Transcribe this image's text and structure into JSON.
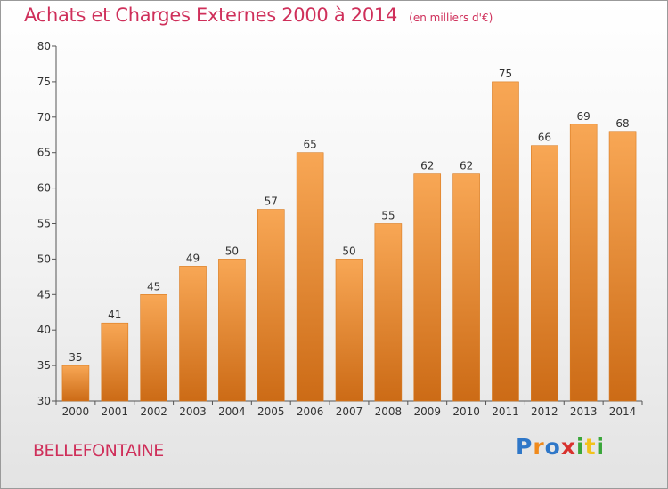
{
  "header": {
    "title": "Achats et Charges Externes 2000 à 2014",
    "unit": "(en milliers d'€)"
  },
  "footer": {
    "commune": "BELLEFONTAINE",
    "logo": {
      "letters": [
        "P",
        "r",
        "o",
        "x",
        "i",
        "t",
        "i"
      ],
      "colors": [
        "#2f77c8",
        "#f08a1c",
        "#2f77c8",
        "#d8312d",
        "#3aa63a",
        "#f2c21b",
        "#3aa63a"
      ]
    }
  },
  "colors": {
    "bar_light": "#f8a755",
    "bar_dark": "#cc6b16",
    "bar_edge": "#d87a20",
    "title": "#cf2f5a"
  },
  "chart_data": {
    "type": "bar",
    "categories": [
      "2000",
      "2001",
      "2002",
      "2003",
      "2004",
      "2005",
      "2006",
      "2007",
      "2008",
      "2009",
      "2010",
      "2011",
      "2012",
      "2013",
      "2014"
    ],
    "values": [
      35,
      41,
      45,
      49,
      50,
      57,
      65,
      50,
      55,
      62,
      62,
      75,
      66,
      69,
      68
    ],
    "title": "Achats et Charges Externes 2000 à 2014",
    "xlabel": "",
    "ylabel": "",
    "ylim": [
      30,
      80
    ],
    "yticks": [
      30,
      35,
      40,
      45,
      50,
      55,
      60,
      65,
      70,
      75,
      80
    ],
    "grid": false,
    "data_labels": true
  }
}
